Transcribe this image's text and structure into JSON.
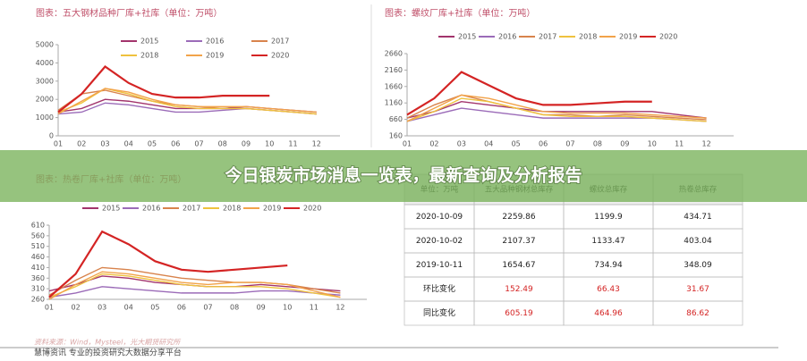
{
  "chart_data": [
    {
      "type": "line",
      "title": "图表：五大钢材品种厂库+社库（单位：万吨）",
      "categories": [
        "01",
        "02",
        "03",
        "04",
        "05",
        "06",
        "07",
        "08",
        "09",
        "10",
        "11",
        "12"
      ],
      "ylim": [
        0,
        5000
      ],
      "yticks": [
        0,
        1000,
        2000,
        3000,
        4000,
        5000
      ],
      "series": [
        {
          "name": "2015",
          "color": "#a2346c",
          "values": [
            1300,
            1500,
            2000,
            1900,
            1700,
            1500,
            1500,
            1500,
            1600,
            1500,
            1400,
            1300
          ]
        },
        {
          "name": "2016",
          "color": "#9b6bb8",
          "values": [
            1200,
            1300,
            1800,
            1700,
            1500,
            1300,
            1300,
            1400,
            1500,
            1400,
            1300,
            1200
          ]
        },
        {
          "name": "2017",
          "color": "#d8834c",
          "values": [
            1400,
            2300,
            2500,
            2200,
            1900,
            1700,
            1600,
            1500,
            1500,
            1400,
            1300,
            1200
          ]
        },
        {
          "name": "2018",
          "color": "#efc23e",
          "values": [
            1300,
            1800,
            2600,
            2300,
            1900,
            1600,
            1500,
            1500,
            1500,
            1400,
            1300,
            1200
          ]
        },
        {
          "name": "2019",
          "color": "#f2a34a",
          "values": [
            1200,
            1900,
            2600,
            2400,
            2000,
            1700,
            1600,
            1600,
            1600,
            1500,
            1400,
            1300
          ]
        },
        {
          "name": "2020",
          "color": "#d42424",
          "values": [
            1300,
            2300,
            3800,
            2900,
            2300,
            2100,
            2100,
            2200,
            2200,
            2200,
            null,
            null
          ]
        }
      ]
    },
    {
      "type": "line",
      "title": "图表：螺纹厂库+社库（单位：万吨）",
      "categories": [
        "01",
        "02",
        "03",
        "04",
        "05",
        "06",
        "07",
        "08",
        "09",
        "10",
        "11",
        "12"
      ],
      "ylim": [
        160,
        2660
      ],
      "yticks": [
        160,
        660,
        1160,
        1660,
        2160,
        2660
      ],
      "series": [
        {
          "name": "2015",
          "color": "#a2346c",
          "values": [
            700,
            900,
            1200,
            1100,
            1000,
            900,
            900,
            900,
            900,
            900,
            800,
            700
          ]
        },
        {
          "name": "2016",
          "color": "#9b6bb8",
          "values": [
            600,
            800,
            1000,
            900,
            800,
            700,
            700,
            700,
            700,
            700,
            650,
            600
          ]
        },
        {
          "name": "2017",
          "color": "#d8834c",
          "values": [
            700,
            1100,
            1400,
            1200,
            1000,
            800,
            800,
            750,
            800,
            750,
            700,
            650
          ]
        },
        {
          "name": "2018",
          "color": "#efc23e",
          "values": [
            600,
            900,
            1300,
            1200,
            1000,
            800,
            750,
            750,
            750,
            700,
            650,
            600
          ]
        },
        {
          "name": "2019",
          "color": "#f2a34a",
          "values": [
            600,
            1000,
            1400,
            1300,
            1100,
            900,
            850,
            850,
            850,
            800,
            750,
            700
          ]
        },
        {
          "name": "2020",
          "color": "#d42424",
          "values": [
            800,
            1300,
            2100,
            1700,
            1300,
            1100,
            1100,
            1150,
            1200,
            1200,
            null,
            null
          ]
        }
      ]
    },
    {
      "type": "line",
      "title": "图表：热卷厂库+社库（单位：万吨）",
      "categories": [
        "01",
        "02",
        "03",
        "04",
        "05",
        "06",
        "07",
        "08",
        "09",
        "10",
        "11",
        "12"
      ],
      "ylim": [
        260,
        610
      ],
      "yticks": [
        260,
        310,
        360,
        410,
        460,
        510,
        560,
        610
      ],
      "series": [
        {
          "name": "2015",
          "color": "#a2346c",
          "values": [
            300,
            330,
            370,
            360,
            340,
            330,
            320,
            320,
            330,
            320,
            310,
            300
          ]
        },
        {
          "name": "2016",
          "color": "#9b6bb8",
          "values": [
            270,
            290,
            320,
            310,
            300,
            290,
            290,
            290,
            300,
            300,
            290,
            280
          ]
        },
        {
          "name": "2017",
          "color": "#d8834c",
          "values": [
            280,
            350,
            410,
            400,
            380,
            360,
            350,
            340,
            340,
            330,
            310,
            290
          ]
        },
        {
          "name": "2018",
          "color": "#efc23e",
          "values": [
            270,
            320,
            380,
            370,
            350,
            330,
            320,
            320,
            320,
            310,
            290,
            270
          ]
        },
        {
          "name": "2019",
          "color": "#f2a34a",
          "values": [
            260,
            330,
            390,
            380,
            360,
            340,
            330,
            340,
            340,
            330,
            300,
            270
          ]
        },
        {
          "name": "2020",
          "color": "#d42424",
          "values": [
            270,
            380,
            580,
            520,
            440,
            400,
            390,
            400,
            410,
            420,
            null,
            null
          ]
        }
      ]
    }
  ],
  "table": {
    "header": [
      "单位：万吨",
      "五大品种钢材总库存",
      "螺纹总库存",
      "热卷总库存"
    ],
    "rows": [
      [
        "2020-10-09",
        "2259.86",
        "1199.9",
        "434.71"
      ],
      [
        "2020-10-02",
        "2107.37",
        "1133.47",
        "403.04"
      ],
      [
        "2019-10-11",
        "1654.67",
        "734.94",
        "348.09"
      ],
      [
        "环比变化",
        "152.49",
        "66.43",
        "31.67"
      ],
      [
        "同比变化",
        "605.19",
        "464.96",
        "86.62"
      ]
    ]
  },
  "banner": "今日银炭市场消息一览表，最新查询及分析报告",
  "source": "资料来源：Wind，Mysteel，光大期货研究所",
  "footer": "慧博资讯 专业的投资研究大数据分享平台"
}
